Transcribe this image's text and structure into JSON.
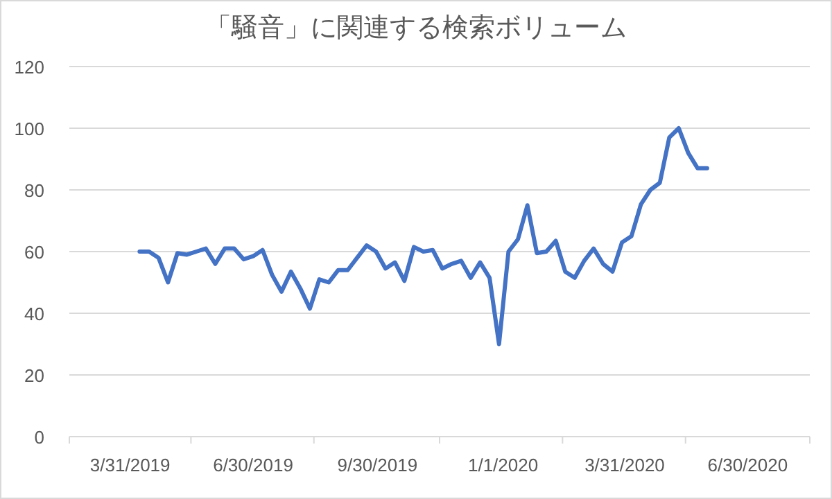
{
  "chart_data": {
    "type": "line",
    "title": "「騒音」に関連する検索ボリューム",
    "x": [
      "2019-04-07",
      "2019-04-14",
      "2019-04-21",
      "2019-04-28",
      "2019-05-05",
      "2019-05-12",
      "2019-05-19",
      "2019-05-26",
      "2019-06-02",
      "2019-06-09",
      "2019-06-16",
      "2019-06-23",
      "2019-06-30",
      "2019-07-07",
      "2019-07-14",
      "2019-07-21",
      "2019-07-28",
      "2019-08-04",
      "2019-08-11",
      "2019-08-18",
      "2019-08-25",
      "2019-09-01",
      "2019-09-08",
      "2019-09-15",
      "2019-09-22",
      "2019-09-29",
      "2019-10-06",
      "2019-10-13",
      "2019-10-20",
      "2019-10-27",
      "2019-11-03",
      "2019-11-10",
      "2019-11-17",
      "2019-11-24",
      "2019-12-01",
      "2019-12-08",
      "2019-12-15",
      "2019-12-22",
      "2019-12-29",
      "2020-01-05",
      "2020-01-12",
      "2020-01-19",
      "2020-01-26",
      "2020-02-02",
      "2020-02-09",
      "2020-02-16",
      "2020-02-23",
      "2020-03-01",
      "2020-03-08",
      "2020-03-15",
      "2020-03-22",
      "2020-03-29",
      "2020-04-05",
      "2020-04-12",
      "2020-04-19",
      "2020-04-26",
      "2020-05-03",
      "2020-05-10",
      "2020-05-17",
      "2020-05-24",
      "2020-05-31"
    ],
    "series": [
      {
        "color": "#4472c4",
        "values": [
          60,
          60,
          58,
          50,
          59.5,
          59,
          60,
          61,
          56,
          61,
          61,
          57.5,
          58.5,
          60.5,
          52.5,
          47,
          53.5,
          48,
          41.5,
          51,
          50,
          54,
          54,
          58,
          62,
          60,
          54.5,
          56.5,
          50.5,
          61.5,
          60,
          60.5,
          54.5,
          56,
          57,
          51.5,
          56.5,
          51.5,
          30,
          60,
          64,
          75,
          59.5,
          60,
          63.5,
          53.5,
          51.5,
          57,
          61,
          56,
          53.5,
          63,
          65,
          75.3,
          80,
          82.3,
          97,
          100,
          92,
          87,
          87
        ]
      }
    ],
    "xlim": [
      "2019-02-14",
      "2020-08-15"
    ],
    "xticks": [
      {
        "value": "2019-02-14",
        "label": null
      },
      {
        "value": "2019-03-31",
        "label": "3/31/2019"
      },
      {
        "value": "2019-05-15",
        "label": null
      },
      {
        "value": "2019-06-30",
        "label": "6/30/2019"
      },
      {
        "value": "2019-08-14",
        "label": null
      },
      {
        "value": "2019-09-30",
        "label": "9/30/2019"
      },
      {
        "value": "2019-11-15",
        "label": null
      },
      {
        "value": "2020-01-01",
        "label": "1/1/2020"
      },
      {
        "value": "2020-02-14",
        "label": null
      },
      {
        "value": "2020-03-31",
        "label": "3/31/2020"
      },
      {
        "value": "2020-05-15",
        "label": null
      },
      {
        "value": "2020-06-30",
        "label": "6/30/2020"
      },
      {
        "value": "2020-08-15",
        "label": null
      }
    ],
    "ylim": [
      0,
      120
    ],
    "yticks": [
      0,
      20,
      40,
      60,
      80,
      100,
      120
    ],
    "grid": "y"
  }
}
